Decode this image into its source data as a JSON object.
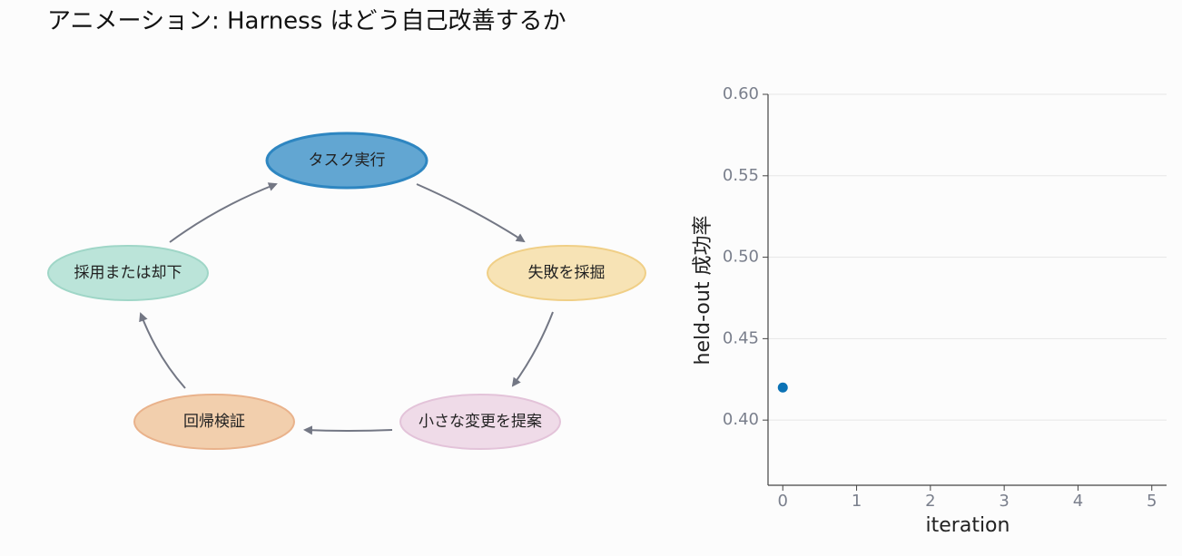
{
  "title": "アニメーション:  Harness はどう自己改善するか",
  "diagram": {
    "nodes": [
      {
        "label": "タスク実行"
      },
      {
        "label": "失敗を採掘"
      },
      {
        "label": "小さな変更を提案"
      },
      {
        "label": "回帰検証"
      },
      {
        "label": "採用または却下"
      }
    ]
  },
  "chart_data": {
    "type": "scatter",
    "xlabel": "iteration",
    "ylabel": "held-out 成功率",
    "x": [
      0
    ],
    "values": [
      0.42
    ],
    "color": "#0b72b5",
    "xlim": [
      -0.2,
      5.2
    ],
    "ylim": [
      0.36,
      0.6
    ],
    "xticks": [
      0,
      1,
      2,
      3,
      4,
      5
    ],
    "yticks": [
      {
        "value": 0.4,
        "label": "0.40"
      },
      0.45,
      {
        "value": 0.5,
        "label": "0.50"
      },
      0.55,
      {
        "value": 0.6,
        "label": "0.60"
      }
    ],
    "grid": true
  }
}
